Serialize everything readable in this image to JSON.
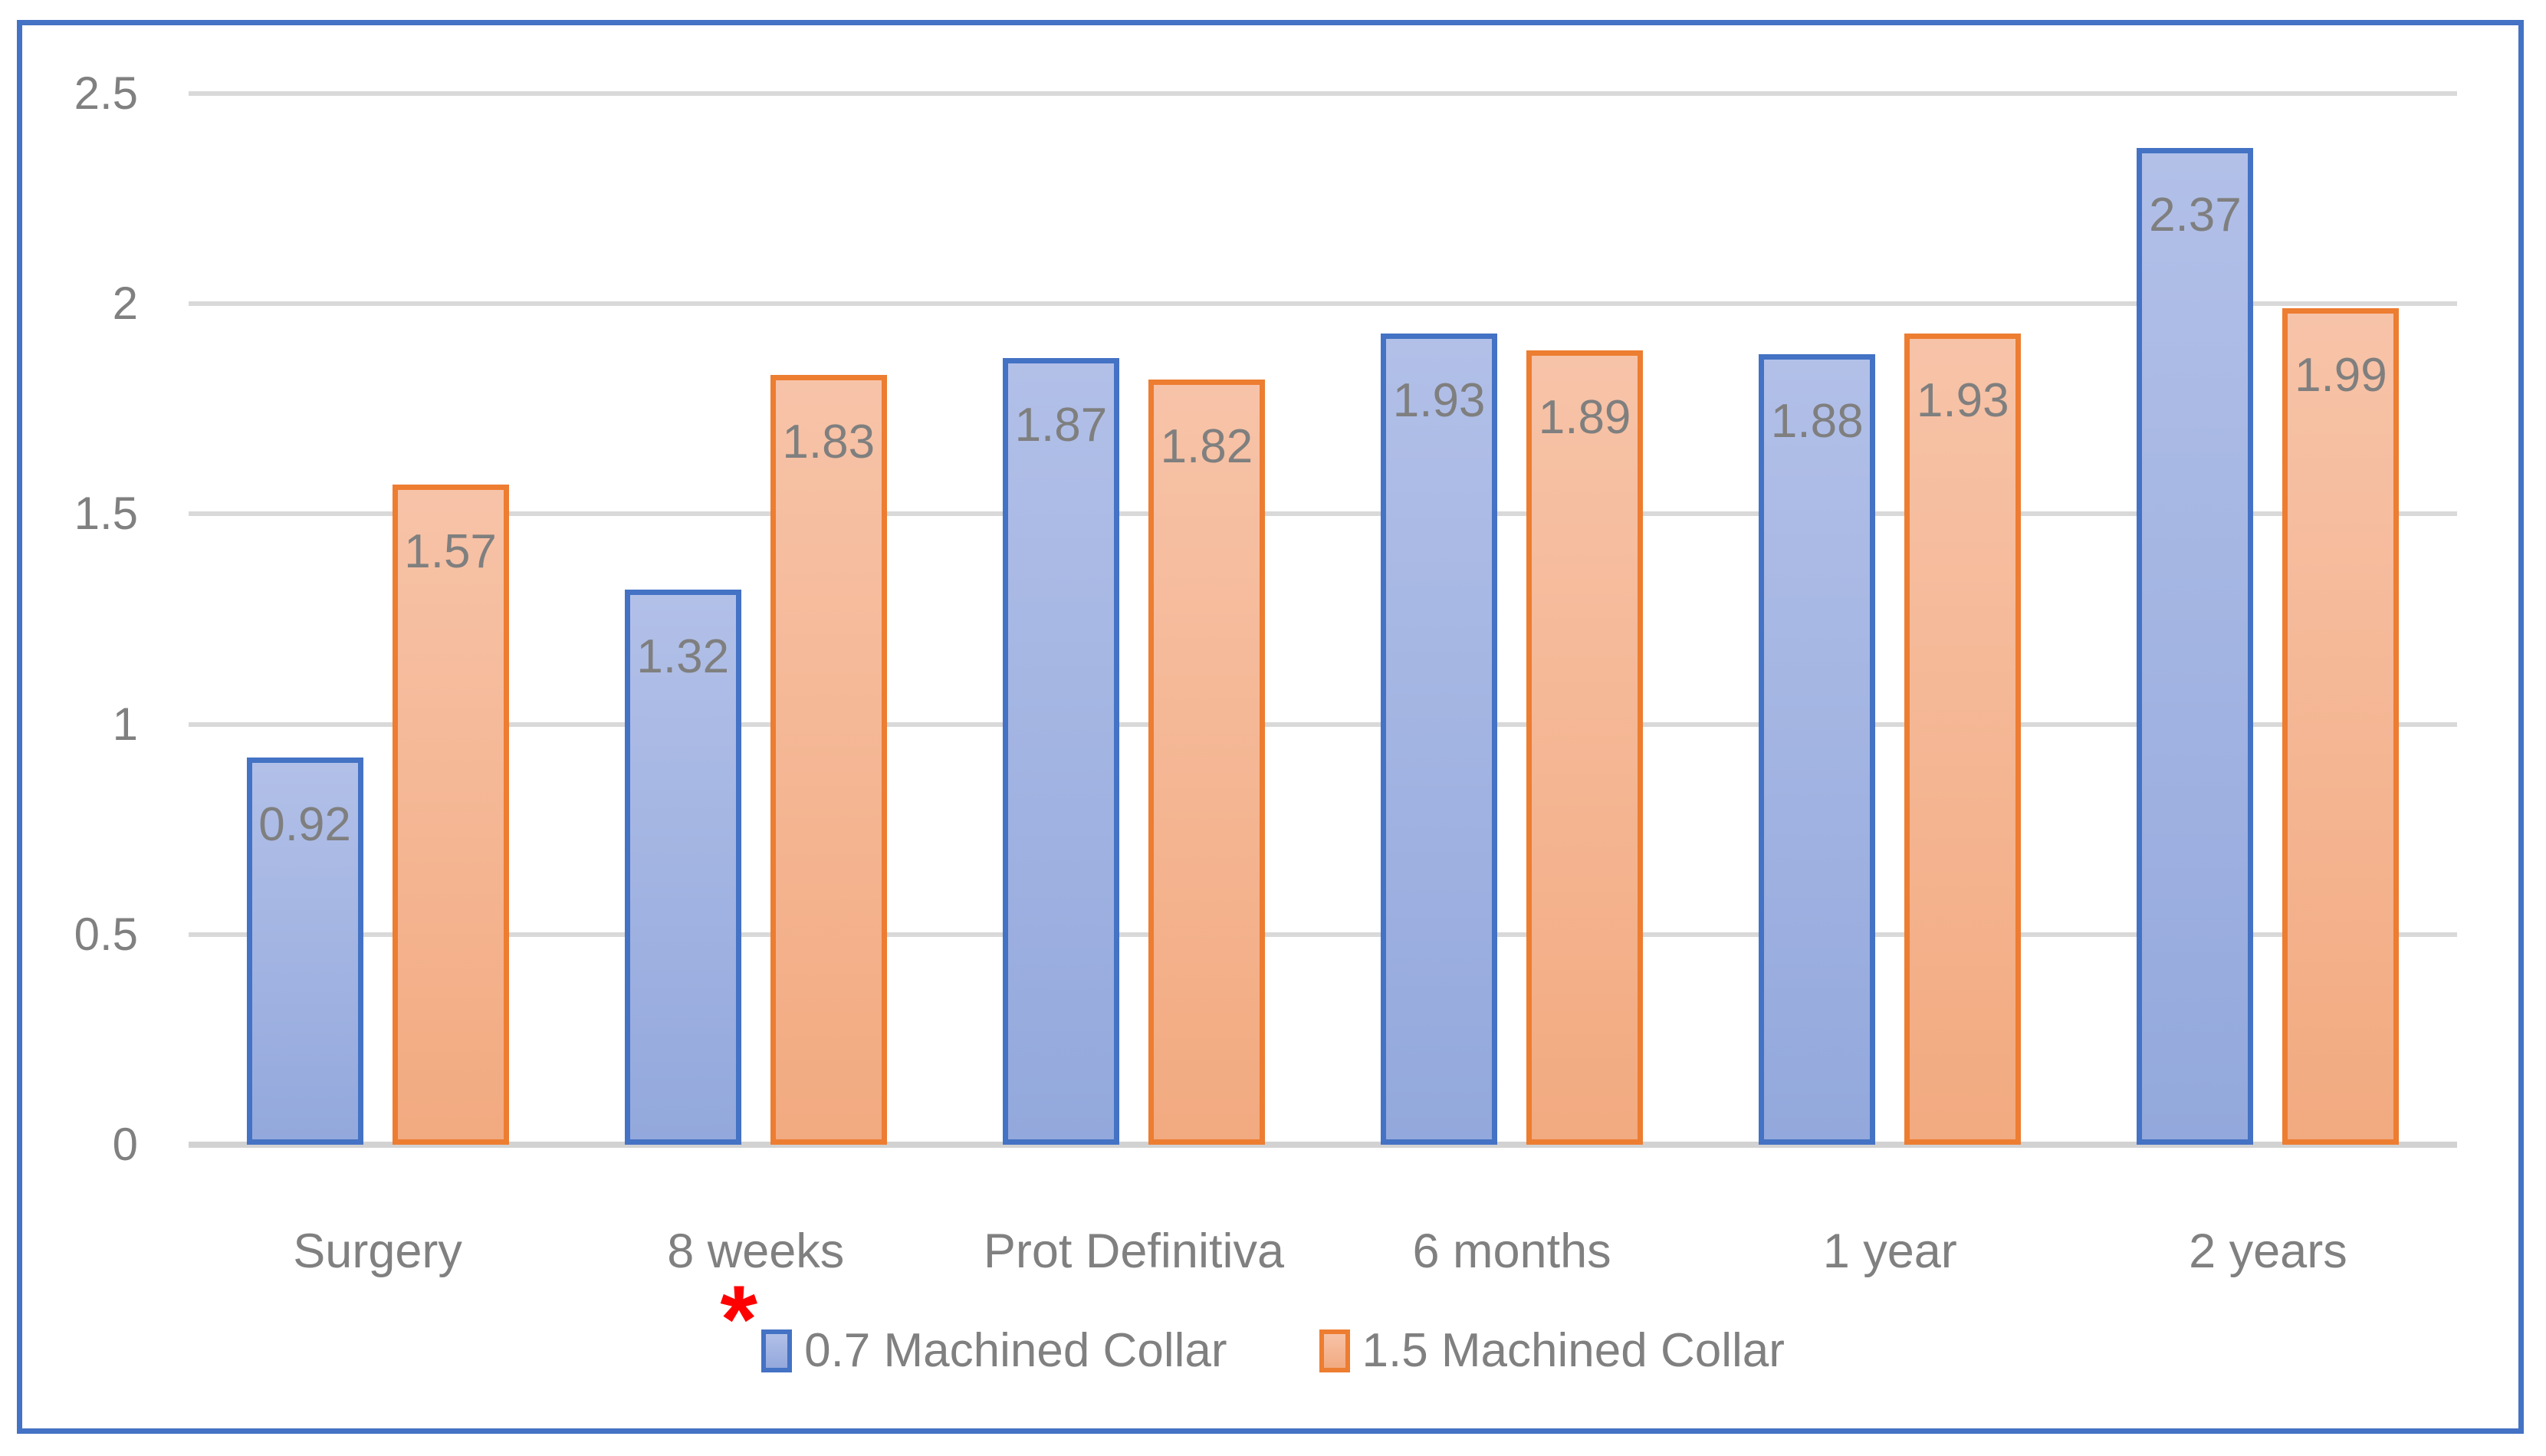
{
  "chart_data": {
    "type": "bar",
    "title": "",
    "xlabel": "",
    "ylabel": "",
    "categories": [
      "Surgery",
      "8 weeks",
      "Prot Definitiva",
      "6 months",
      "1 year",
      "2 years"
    ],
    "series": [
      {
        "name": "0.7 Machined Collar",
        "values": [
          0.92,
          1.32,
          1.87,
          1.93,
          1.88,
          2.37
        ],
        "data_labels": [
          "0.92",
          "1.32",
          "1.87",
          "1.93",
          "1.88",
          "2.37"
        ],
        "border_color": "#4472c4",
        "fill_top": "#b2c0e8",
        "fill_bottom": "#93a8dc"
      },
      {
        "name": "1.5 Machined Collar",
        "values": [
          1.57,
          1.83,
          1.82,
          1.89,
          1.93,
          1.99
        ],
        "data_labels": [
          "1.57",
          "1.83",
          "1.82",
          "1.89",
          "1.93",
          "1.99"
        ],
        "border_color": "#ed7d31",
        "fill_top": "#f7c3a8",
        "fill_bottom": "#f2aa80"
      }
    ],
    "ylim": [
      0,
      2.5
    ],
    "ytick_values": [
      0,
      0.5,
      1,
      1.5,
      2,
      2.5
    ],
    "ytick_labels": [
      "0",
      "0.5",
      "1",
      "1.5",
      "2",
      "2.5"
    ],
    "grid": true,
    "legend_position": "bottom",
    "annotation": {
      "text": "*",
      "category": "8 weeks",
      "category_index": 1,
      "color": "#ff0000"
    },
    "colors": {
      "frame_border": "#4472c4",
      "gridline": "#d9d9d9",
      "axis_line": "#d2d2d2",
      "text_gray": "#808080",
      "data_label_gray": "#7f7f7f"
    }
  }
}
